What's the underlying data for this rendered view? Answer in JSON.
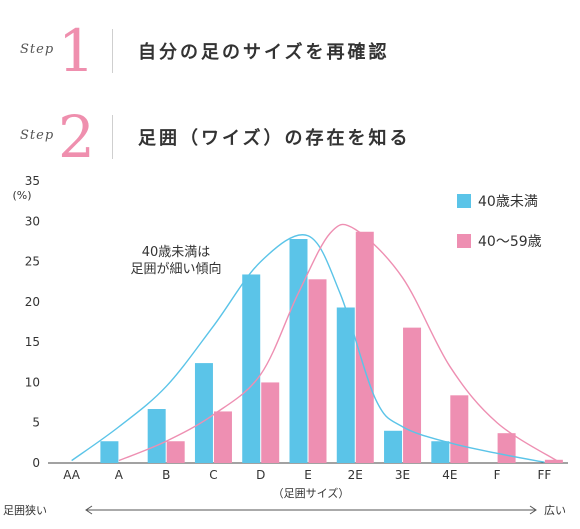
{
  "steps": [
    {
      "word": "Step",
      "number": "1",
      "title": "自分の足のサイズを再確認"
    },
    {
      "word": "Step",
      "number": "2",
      "title": "足囲（ワイズ）の存在を知る"
    }
  ],
  "colors": {
    "under40": "#5bc4e8",
    "age40to59": "#ee8fb2",
    "axis": "#444444"
  },
  "chart_data": {
    "type": "bar",
    "ylabel": "(%)",
    "xlabel": "（足囲サイズ）",
    "ylim": [
      0,
      35
    ],
    "yticks": [
      0,
      5,
      10,
      15,
      20,
      25,
      30,
      35
    ],
    "categories": [
      "AA",
      "A",
      "B",
      "C",
      "D",
      "E",
      "2E",
      "3E",
      "4E",
      "F",
      "FF"
    ],
    "series": [
      {
        "name": "40歳未満",
        "values": [
          0,
          2.7,
          6.7,
          12.4,
          23.4,
          27.8,
          19.3,
          4.0,
          2.7,
          0,
          0
        ]
      },
      {
        "name": "40～59歳",
        "values": [
          0,
          0,
          2.7,
          6.4,
          10.0,
          22.8,
          28.7,
          16.8,
          8.4,
          3.7,
          0.4
        ]
      }
    ],
    "legend_position": "top-right",
    "annotation": [
      "40歳未満は",
      "足囲が細い傾向"
    ],
    "grid": false,
    "axis_arrow": {
      "left": "足囲狭い",
      "right": "広い"
    }
  }
}
